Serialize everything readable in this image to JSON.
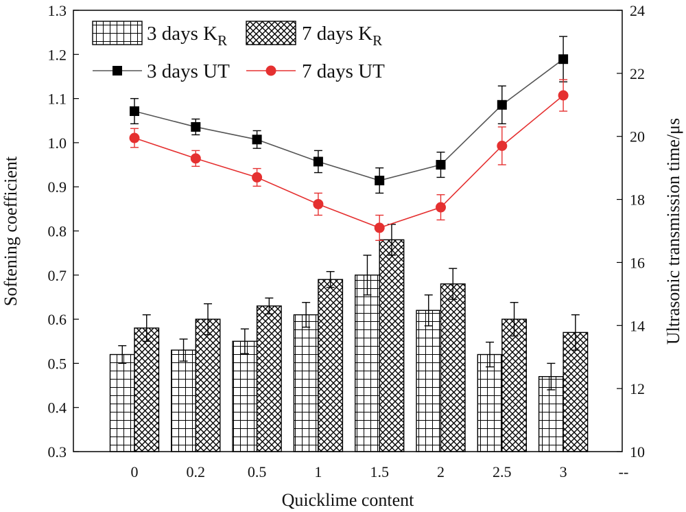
{
  "chart_data": {
    "type": "bar",
    "categories": [
      "0",
      "0.2",
      "0.5",
      "1",
      "1.5",
      "2",
      "2.5",
      "3"
    ],
    "extra_x_tick_label": "--",
    "xlabel": "Quicklime content",
    "ylabel": "Softening coefficient",
    "ylabel_right": "Ultrasonic transmission time/μs",
    "ylim": [
      0.3,
      1.3
    ],
    "ylim_right": [
      10,
      24
    ],
    "yticks": [
      "0.3",
      "0.4",
      "0.5",
      "0.6",
      "0.7",
      "0.8",
      "0.9",
      "1.0",
      "1.1",
      "1.2",
      "1.3"
    ],
    "yticks_right": [
      "10",
      "12",
      "14",
      "16",
      "18",
      "20",
      "22",
      "24"
    ],
    "grid": false,
    "legend_position": "top-left",
    "series": [
      {
        "name": "3 days K",
        "name_subscript": "R",
        "kind": "bar",
        "pattern": "grid",
        "axis": "left",
        "values": [
          0.52,
          0.53,
          0.55,
          0.61,
          0.7,
          0.62,
          0.52,
          0.47
        ],
        "errors": [
          0.02,
          0.025,
          0.028,
          0.028,
          0.045,
          0.035,
          0.028,
          0.03
        ]
      },
      {
        "name": "7 days K",
        "name_subscript": "R",
        "kind": "bar",
        "pattern": "crosshatch",
        "axis": "left",
        "values": [
          0.58,
          0.6,
          0.63,
          0.69,
          0.78,
          0.68,
          0.6,
          0.57
        ],
        "errors": [
          0.03,
          0.035,
          0.018,
          0.018,
          0.035,
          0.035,
          0.038,
          0.04
        ]
      },
      {
        "name": "3 days UT",
        "kind": "line",
        "marker": "square",
        "color": "#000000",
        "axis": "right",
        "values": [
          20.8,
          20.3,
          19.9,
          19.2,
          18.6,
          19.1,
          21.0,
          22.45
        ],
        "errors": [
          0.4,
          0.25,
          0.28,
          0.35,
          0.4,
          0.4,
          0.6,
          0.72
        ]
      },
      {
        "name": "7 days UT",
        "kind": "line",
        "marker": "circle",
        "color": "#e53030",
        "axis": "right",
        "values": [
          19.95,
          19.3,
          18.7,
          17.85,
          17.1,
          17.75,
          19.7,
          21.3
        ],
        "errors": [
          0.3,
          0.25,
          0.28,
          0.35,
          0.4,
          0.4,
          0.6,
          0.5
        ]
      }
    ]
  }
}
